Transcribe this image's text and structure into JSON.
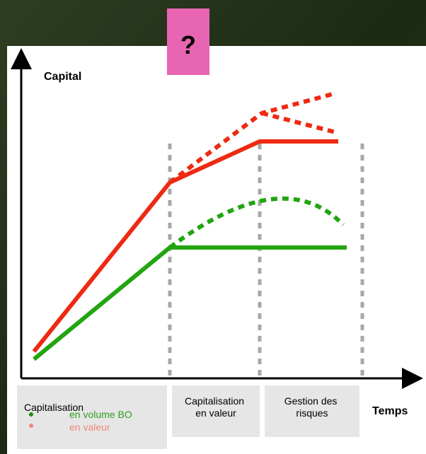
{
  "question": "?",
  "y_axis_label": "Capital",
  "x_axis_label": "Temps",
  "legend": {
    "title": "Capitalisation",
    "items": [
      {
        "label": "en volume BO"
      },
      {
        "label": "en valeur"
      }
    ]
  },
  "phases": [
    {
      "lines": [
        "Capitalisation",
        "en valeur"
      ]
    },
    {
      "lines": [
        "Gestion des",
        "risques"
      ]
    }
  ]
}
